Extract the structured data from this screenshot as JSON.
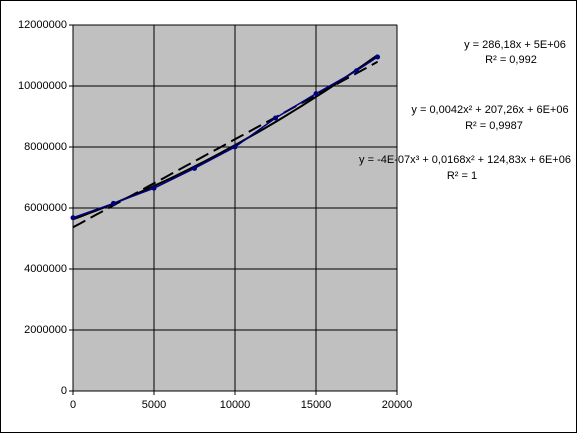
{
  "chart_data": {
    "type": "line",
    "x": [
      0,
      2500,
      5000,
      7500,
      10000,
      12500,
      15000,
      17500,
      18800
    ],
    "series": [
      {
        "color": "#000080",
        "values": [
          5680000,
          6150000,
          6650000,
          7300000,
          8000000,
          8950000,
          9750000,
          10500000,
          10950000
        ]
      }
    ],
    "xlim": [
      0,
      20000
    ],
    "xticks": [
      0,
      5000,
      10000,
      15000,
      20000
    ],
    "ylim": [
      0,
      12000000
    ],
    "yticks": [
      0,
      2000000,
      4000000,
      6000000,
      8000000,
      10000000,
      12000000
    ],
    "grid": true,
    "plot_background": "#c0c0c0",
    "annotations": [
      "y = 286,18x + 5E+06",
      "R² = 0,992",
      "y = 0,0042x² + 207,26x + 6E+06",
      "R² = 0,9987",
      "y = -4E-07x³ + 0,0168x² + 124,83x + 6E+06",
      "R² = 1"
    ]
  }
}
